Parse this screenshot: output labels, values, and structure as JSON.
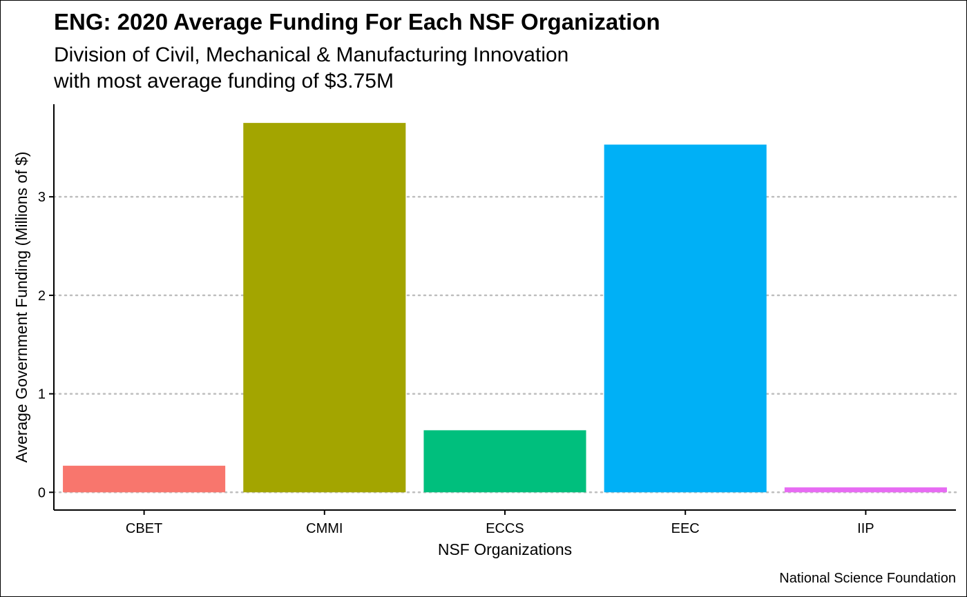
{
  "chart_data": {
    "type": "bar",
    "title": "ENG: 2020 Average Funding For Each NSF Organization",
    "subtitle": [
      "Division of Civil, Mechanical & Manufacturing Innovation",
      "with most average funding of $3.75M"
    ],
    "xlabel": "NSF Organizations",
    "ylabel": "Average Government Funding (Millions of $)",
    "caption": "National Science Foundation",
    "categories": [
      "CBET",
      "CMMI",
      "ECCS",
      "EEC",
      "IIP"
    ],
    "values": [
      0.27,
      3.75,
      0.63,
      3.53,
      0.05
    ],
    "colors": [
      "#F8766D",
      "#A3A500",
      "#00BF7D",
      "#00B0F6",
      "#E76BF3"
    ],
    "ylim": [
      -0.18,
      3.94
    ],
    "yticks": [
      0,
      1,
      2,
      3
    ],
    "grid": "major-y-dotted",
    "legend": "none"
  }
}
